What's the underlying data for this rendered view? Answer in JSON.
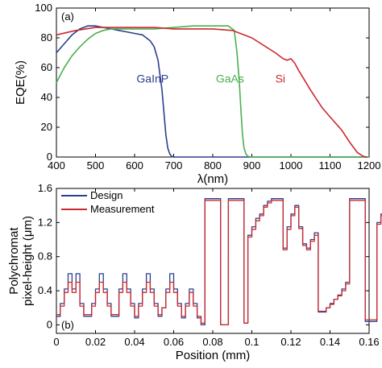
{
  "chart_data": [
    {
      "type": "line",
      "panel_label": "(a)",
      "xlabel": "λ(nm)",
      "ylabel": "EQE(%)",
      "xlim": [
        400,
        1200
      ],
      "ylim": [
        0,
        100
      ],
      "xticks": [
        "400",
        "500",
        "600",
        "700",
        "800",
        "900",
        "1000",
        "1100",
        "1200"
      ],
      "yticks": [
        "0",
        "20",
        "40",
        "60",
        "80",
        "100"
      ],
      "grid": false,
      "series": [
        {
          "name": "GaInP",
          "color": "#2b3f8f",
          "x": [
            400,
            420,
            440,
            460,
            480,
            500,
            520,
            540,
            560,
            580,
            600,
            620,
            640,
            650,
            660,
            670,
            675,
            680,
            685,
            690,
            695,
            700,
            720,
            1200
          ],
          "y": [
            70,
            76,
            82,
            86,
            88,
            88,
            87,
            86,
            85,
            84,
            83,
            82,
            78,
            74,
            65,
            45,
            30,
            15,
            6,
            2,
            0.5,
            0,
            0,
            0
          ]
        },
        {
          "name": "GaAs",
          "color": "#4caf50",
          "x": [
            400,
            420,
            440,
            460,
            480,
            500,
            520,
            540,
            560,
            580,
            600,
            650,
            700,
            750,
            800,
            840,
            855,
            862,
            868,
            872,
            876,
            880,
            885,
            890,
            900,
            1200
          ],
          "y": [
            50,
            60,
            68,
            74,
            79,
            83,
            85,
            86,
            86,
            86,
            86,
            86,
            87,
            88,
            88,
            88,
            85,
            70,
            50,
            32,
            15,
            6,
            2,
            0.5,
            0,
            0
          ]
        },
        {
          "name": "Si",
          "color": "#cc2a2f",
          "x": [
            400,
            450,
            500,
            550,
            600,
            650,
            700,
            750,
            800,
            850,
            900,
            930,
            960,
            980,
            990,
            1000,
            1010,
            1020,
            1050,
            1080,
            1100,
            1130,
            1150,
            1170,
            1185,
            1195
          ],
          "y": [
            82,
            85,
            87,
            87,
            87,
            87,
            86,
            86,
            86,
            85,
            80,
            75,
            70,
            66,
            65,
            66,
            63,
            58,
            45,
            33,
            27,
            18,
            10,
            3,
            0.5,
            0
          ]
        }
      ],
      "annotations": [
        {
          "text": "GaInP",
          "x": 605,
          "y": 50,
          "color": "#2b3f8f"
        },
        {
          "text": "GaAs",
          "x": 808,
          "y": 50,
          "color": "#4caf50"
        },
        {
          "text": "Si",
          "x": 960,
          "y": 50,
          "color": "#cc2a2f"
        }
      ]
    },
    {
      "type": "line",
      "panel_label": "(b)",
      "xlabel": "Position (mm)",
      "ylabel": "Polychromat pixel-height (μm)",
      "xlim": [
        0,
        0.16
      ],
      "ylim": [
        -0.1,
        1.6
      ],
      "xticks": [
        "0",
        "0.02",
        "0.04",
        "0.06",
        "0.08",
        "0.1",
        "0.12",
        "0.14",
        "0.16"
      ],
      "yticks": [
        "0",
        "0.4",
        "0.8",
        "1.2",
        "1.6"
      ],
      "grid": false,
      "legend_position": "top-left",
      "series": [
        {
          "name": "Design",
          "color": "#2b3f8f",
          "step": 0.002,
          "start": 0.001,
          "values": [
            0.1,
            0.25,
            0.42,
            0.6,
            0.42,
            0.6,
            0.25,
            0.1,
            0.1,
            0.25,
            0.42,
            0.6,
            0.42,
            0.25,
            0.1,
            0.1,
            0.42,
            0.6,
            0.42,
            0.25,
            0.08,
            0.25,
            0.42,
            0.6,
            0.42,
            0.25,
            0.1,
            0.2,
            0.42,
            0.6,
            0.42,
            0.25,
            0.08,
            0.25,
            0.42,
            0.25,
            0.08,
            0,
            1.48,
            1.48,
            1.48,
            1.48,
            0,
            0,
            1.48,
            1.48,
            1.48,
            1.48,
            0.02,
            1.05,
            1.15,
            1.25,
            1.3,
            1.4,
            1.45,
            1.48,
            1.48,
            1.48,
            0.9,
            1.15,
            1.3,
            1.4,
            1.15,
            0.95,
            0.9,
            1.0,
            1.08,
            0.15,
            0.15,
            0.2,
            0.25,
            0.3,
            0.35,
            0.42,
            0.5,
            1.48,
            1.48,
            1.48,
            1.48,
            0.04,
            0.04,
            0.04,
            1.2,
            1.3,
            1.4,
            1.45,
            1.48,
            1.48
          ]
        },
        {
          "name": "Measurement",
          "color": "#cc2a2f",
          "step": 0.002,
          "start": 0.001,
          "values": [
            0.12,
            0.22,
            0.38,
            0.5,
            0.38,
            0.5,
            0.22,
            0.12,
            0.12,
            0.22,
            0.38,
            0.5,
            0.38,
            0.22,
            0.12,
            0.12,
            0.38,
            0.5,
            0.38,
            0.22,
            0.1,
            0.22,
            0.38,
            0.5,
            0.38,
            0.22,
            0.12,
            0.2,
            0.38,
            0.5,
            0.38,
            0.22,
            0.1,
            0.22,
            0.38,
            0.22,
            0.1,
            0.02,
            1.46,
            1.46,
            1.46,
            1.46,
            0,
            0,
            1.46,
            1.46,
            1.46,
            1.46,
            0.02,
            1.03,
            1.12,
            1.22,
            1.28,
            1.38,
            1.43,
            1.46,
            1.46,
            1.46,
            0.88,
            1.12,
            1.28,
            1.38,
            1.13,
            0.93,
            0.88,
            0.98,
            1.05,
            0.16,
            0.16,
            0.2,
            0.24,
            0.3,
            0.34,
            0.4,
            0.48,
            1.46,
            1.46,
            1.46,
            1.46,
            0.06,
            0.06,
            0.06,
            1.18,
            1.28,
            1.38,
            1.43,
            1.46,
            1.46
          ]
        }
      ]
    }
  ]
}
